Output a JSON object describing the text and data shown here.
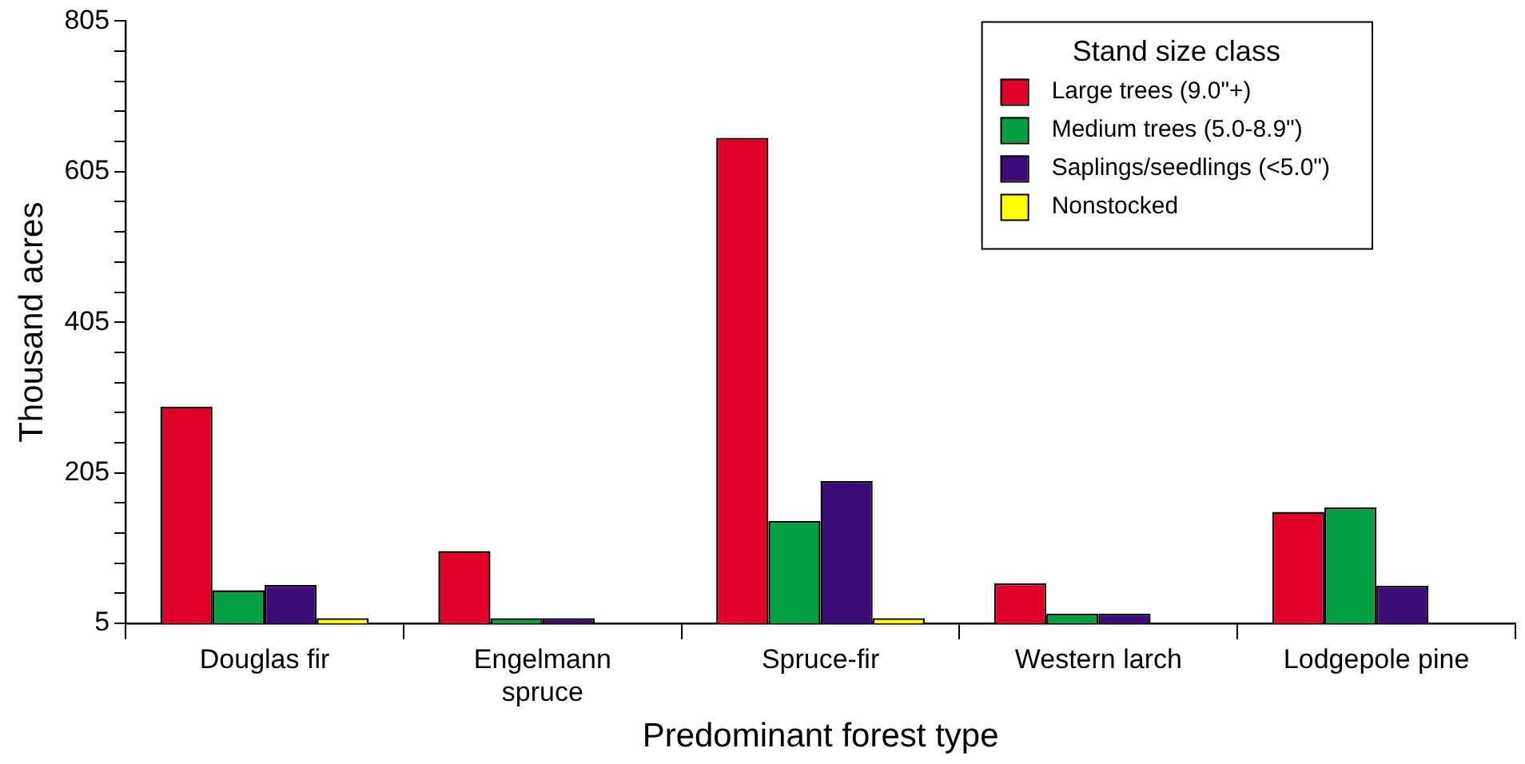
{
  "chart_data": {
    "type": "bar",
    "xlabel": "Predominant forest type",
    "ylabel": "Thousand acres",
    "legend_title": "Stand size class",
    "legend": "top right",
    "grid": false,
    "categories": [
      "Douglas fir",
      "Engelmann spruce",
      "Spruce-fir",
      "Western larch",
      "Lodgepole pine"
    ],
    "series": [
      {
        "name": "Large trees (9.0\"+)",
        "color": "#e00028",
        "values": [
          293,
          101,
          650,
          58,
          153
        ]
      },
      {
        "name": "Medium trees (5.0-8.9\")",
        "color": "#00a040",
        "values": [
          49,
          12,
          141,
          18,
          159
        ]
      },
      {
        "name": "Saplings/seedlings (<5.0\")",
        "color": "#3c0c78",
        "values": [
          56,
          12,
          194,
          18,
          55
        ]
      },
      {
        "name": "Nonstocked",
        "color": "#ffff00",
        "values": [
          12,
          null,
          12,
          null,
          null
        ]
      }
    ],
    "ylim": [
      5,
      805
    ],
    "yticks": [
      5,
      {
        "value": 45,
        "label": null
      },
      {
        "value": 85,
        "label": null
      },
      {
        "value": 125,
        "label": null
      },
      {
        "value": 165,
        "label": null
      },
      205,
      {
        "value": 245,
        "label": null
      },
      {
        "value": 285,
        "label": null
      },
      {
        "value": 325,
        "label": null
      },
      {
        "value": 365,
        "label": null
      },
      405,
      {
        "value": 445,
        "label": null
      },
      {
        "value": 485,
        "label": null
      },
      {
        "value": 525,
        "label": null
      },
      {
        "value": 565,
        "label": null
      },
      605,
      {
        "value": 645,
        "label": null
      },
      {
        "value": 685,
        "label": null
      },
      {
        "value": 725,
        "label": null
      },
      {
        "value": 765,
        "label": null
      },
      805
    ]
  }
}
